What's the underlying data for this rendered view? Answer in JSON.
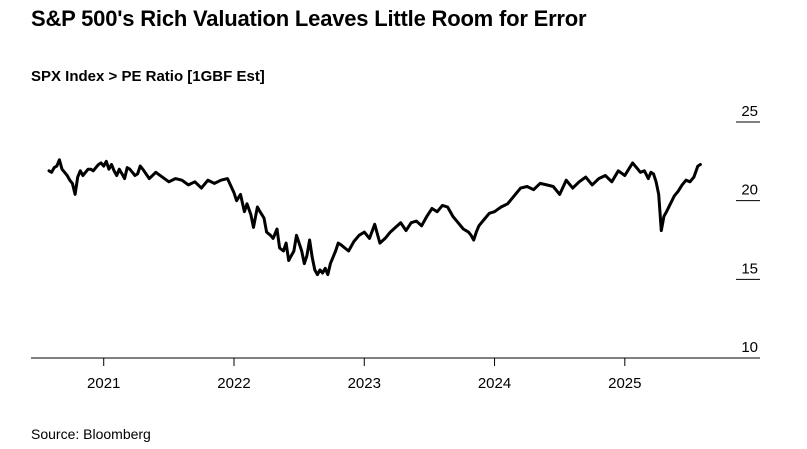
{
  "title": "S&P 500's Rich Valuation Leaves Little Room for Error",
  "source": "Source: Bloomberg",
  "chart_data": {
    "type": "line",
    "subtitle": "SPX Index > PE Ratio [1GBF Est]",
    "ylim": [
      10,
      25
    ],
    "yticks": [
      25,
      20,
      15,
      10
    ],
    "xlim": [
      2020.58,
      2025.74
    ],
    "xticks": [
      {
        "label": "2021",
        "value": 2021.0
      },
      {
        "label": "2022",
        "value": 2022.0
      },
      {
        "label": "2023",
        "value": 2023.0
      },
      {
        "label": "2024",
        "value": 2024.0
      },
      {
        "label": "2025",
        "value": 2025.0
      }
    ],
    "color": "#000000",
    "series": [
      {
        "x": [
          2020.58,
          2020.6,
          2020.62,
          2020.64,
          2020.66,
          2020.68,
          2020.7,
          2020.72,
          2020.74,
          2020.76,
          2020.78,
          2020.8,
          2020.82,
          2020.84,
          2020.86,
          2020.88,
          2020.9,
          2020.92,
          2020.94,
          2020.96,
          2020.98,
          2021.0,
          2021.02,
          2021.04,
          2021.06,
          2021.08,
          2021.1,
          2021.12,
          2021.14,
          2021.16,
          2021.18,
          2021.2,
          2021.22,
          2021.24,
          2021.26,
          2021.28,
          2021.3,
          2021.35,
          2021.4,
          2021.45,
          2021.5,
          2021.55,
          2021.6,
          2021.65,
          2021.7,
          2021.75,
          2021.8,
          2021.85,
          2021.9,
          2021.95,
          2022.0,
          2022.02,
          2022.05,
          2022.08,
          2022.1,
          2022.13,
          2022.15,
          2022.18,
          2022.2,
          2022.23,
          2022.25,
          2022.28,
          2022.3,
          2022.33,
          2022.35,
          2022.38,
          2022.4,
          2022.42,
          2022.44,
          2022.46,
          2022.48,
          2022.5,
          2022.52,
          2022.54,
          2022.56,
          2022.58,
          2022.6,
          2022.62,
          2022.64,
          2022.66,
          2022.68,
          2022.7,
          2022.72,
          2022.74,
          2022.76,
          2022.78,
          2022.8,
          2022.82,
          2022.85,
          2022.88,
          2022.92,
          2022.96,
          2023.0,
          2023.04,
          2023.08,
          2023.12,
          2023.16,
          2023.2,
          2023.24,
          2023.28,
          2023.32,
          2023.36,
          2023.4,
          2023.44,
          2023.48,
          2023.52,
          2023.56,
          2023.6,
          2023.64,
          2023.68,
          2023.72,
          2023.76,
          2023.8,
          2023.82,
          2023.84,
          2023.86,
          2023.88,
          2023.92,
          2023.96,
          2024.0,
          2024.05,
          2024.1,
          2024.15,
          2024.2,
          2024.25,
          2024.3,
          2024.35,
          2024.4,
          2024.45,
          2024.5,
          2024.55,
          2024.6,
          2024.65,
          2024.7,
          2024.75,
          2024.8,
          2024.85,
          2024.9,
          2024.95,
          2025.0,
          2025.03,
          2025.06,
          2025.09,
          2025.12,
          2025.15,
          2025.18,
          2025.2,
          2025.22,
          2025.24,
          2025.26,
          2025.28,
          2025.3,
          2025.32,
          2025.35,
          2025.38,
          2025.41,
          2025.44,
          2025.47,
          2025.5,
          2025.53,
          2025.56,
          2025.58
        ],
        "y": [
          21.9,
          21.8,
          22.1,
          22.2,
          22.6,
          22.0,
          21.8,
          21.6,
          21.3,
          21.1,
          20.4,
          21.5,
          21.9,
          21.6,
          21.8,
          22.0,
          22.0,
          21.9,
          22.1,
          22.3,
          22.4,
          22.2,
          22.5,
          22.0,
          22.3,
          21.9,
          21.6,
          22.0,
          21.7,
          21.4,
          22.1,
          22.0,
          21.8,
          21.6,
          21.7,
          22.2,
          22.0,
          21.4,
          21.8,
          21.5,
          21.2,
          21.4,
          21.3,
          21.0,
          21.2,
          20.8,
          21.3,
          21.1,
          21.3,
          21.4,
          20.5,
          20.0,
          20.4,
          19.3,
          19.8,
          19.1,
          18.3,
          19.6,
          19.3,
          18.9,
          18.0,
          17.8,
          17.6,
          18.2,
          17.0,
          16.8,
          17.3,
          16.2,
          16.5,
          16.8,
          17.8,
          17.3,
          16.8,
          16.0,
          16.5,
          17.5,
          16.4,
          15.6,
          15.3,
          15.6,
          15.4,
          15.7,
          15.3,
          16.0,
          16.4,
          16.8,
          17.3,
          17.2,
          17.0,
          16.8,
          17.4,
          17.8,
          18.0,
          17.6,
          18.5,
          17.3,
          17.6,
          18.0,
          18.3,
          18.6,
          18.1,
          18.6,
          18.7,
          18.4,
          19.0,
          19.5,
          19.3,
          19.7,
          19.6,
          19.0,
          18.6,
          18.2,
          18.0,
          17.8,
          17.5,
          18.0,
          18.4,
          18.8,
          19.2,
          19.3,
          19.6,
          19.8,
          20.3,
          20.8,
          20.9,
          20.7,
          21.1,
          21.0,
          20.9,
          20.4,
          21.3,
          20.8,
          21.2,
          21.5,
          21.0,
          21.4,
          21.6,
          21.2,
          21.9,
          21.6,
          22.0,
          22.4,
          22.1,
          21.8,
          21.9,
          21.4,
          21.8,
          21.7,
          21.2,
          20.4,
          18.1,
          19.0,
          19.3,
          19.8,
          20.3,
          20.6,
          21.0,
          21.3,
          21.2,
          21.5,
          22.2,
          22.3
        ]
      }
    ]
  }
}
